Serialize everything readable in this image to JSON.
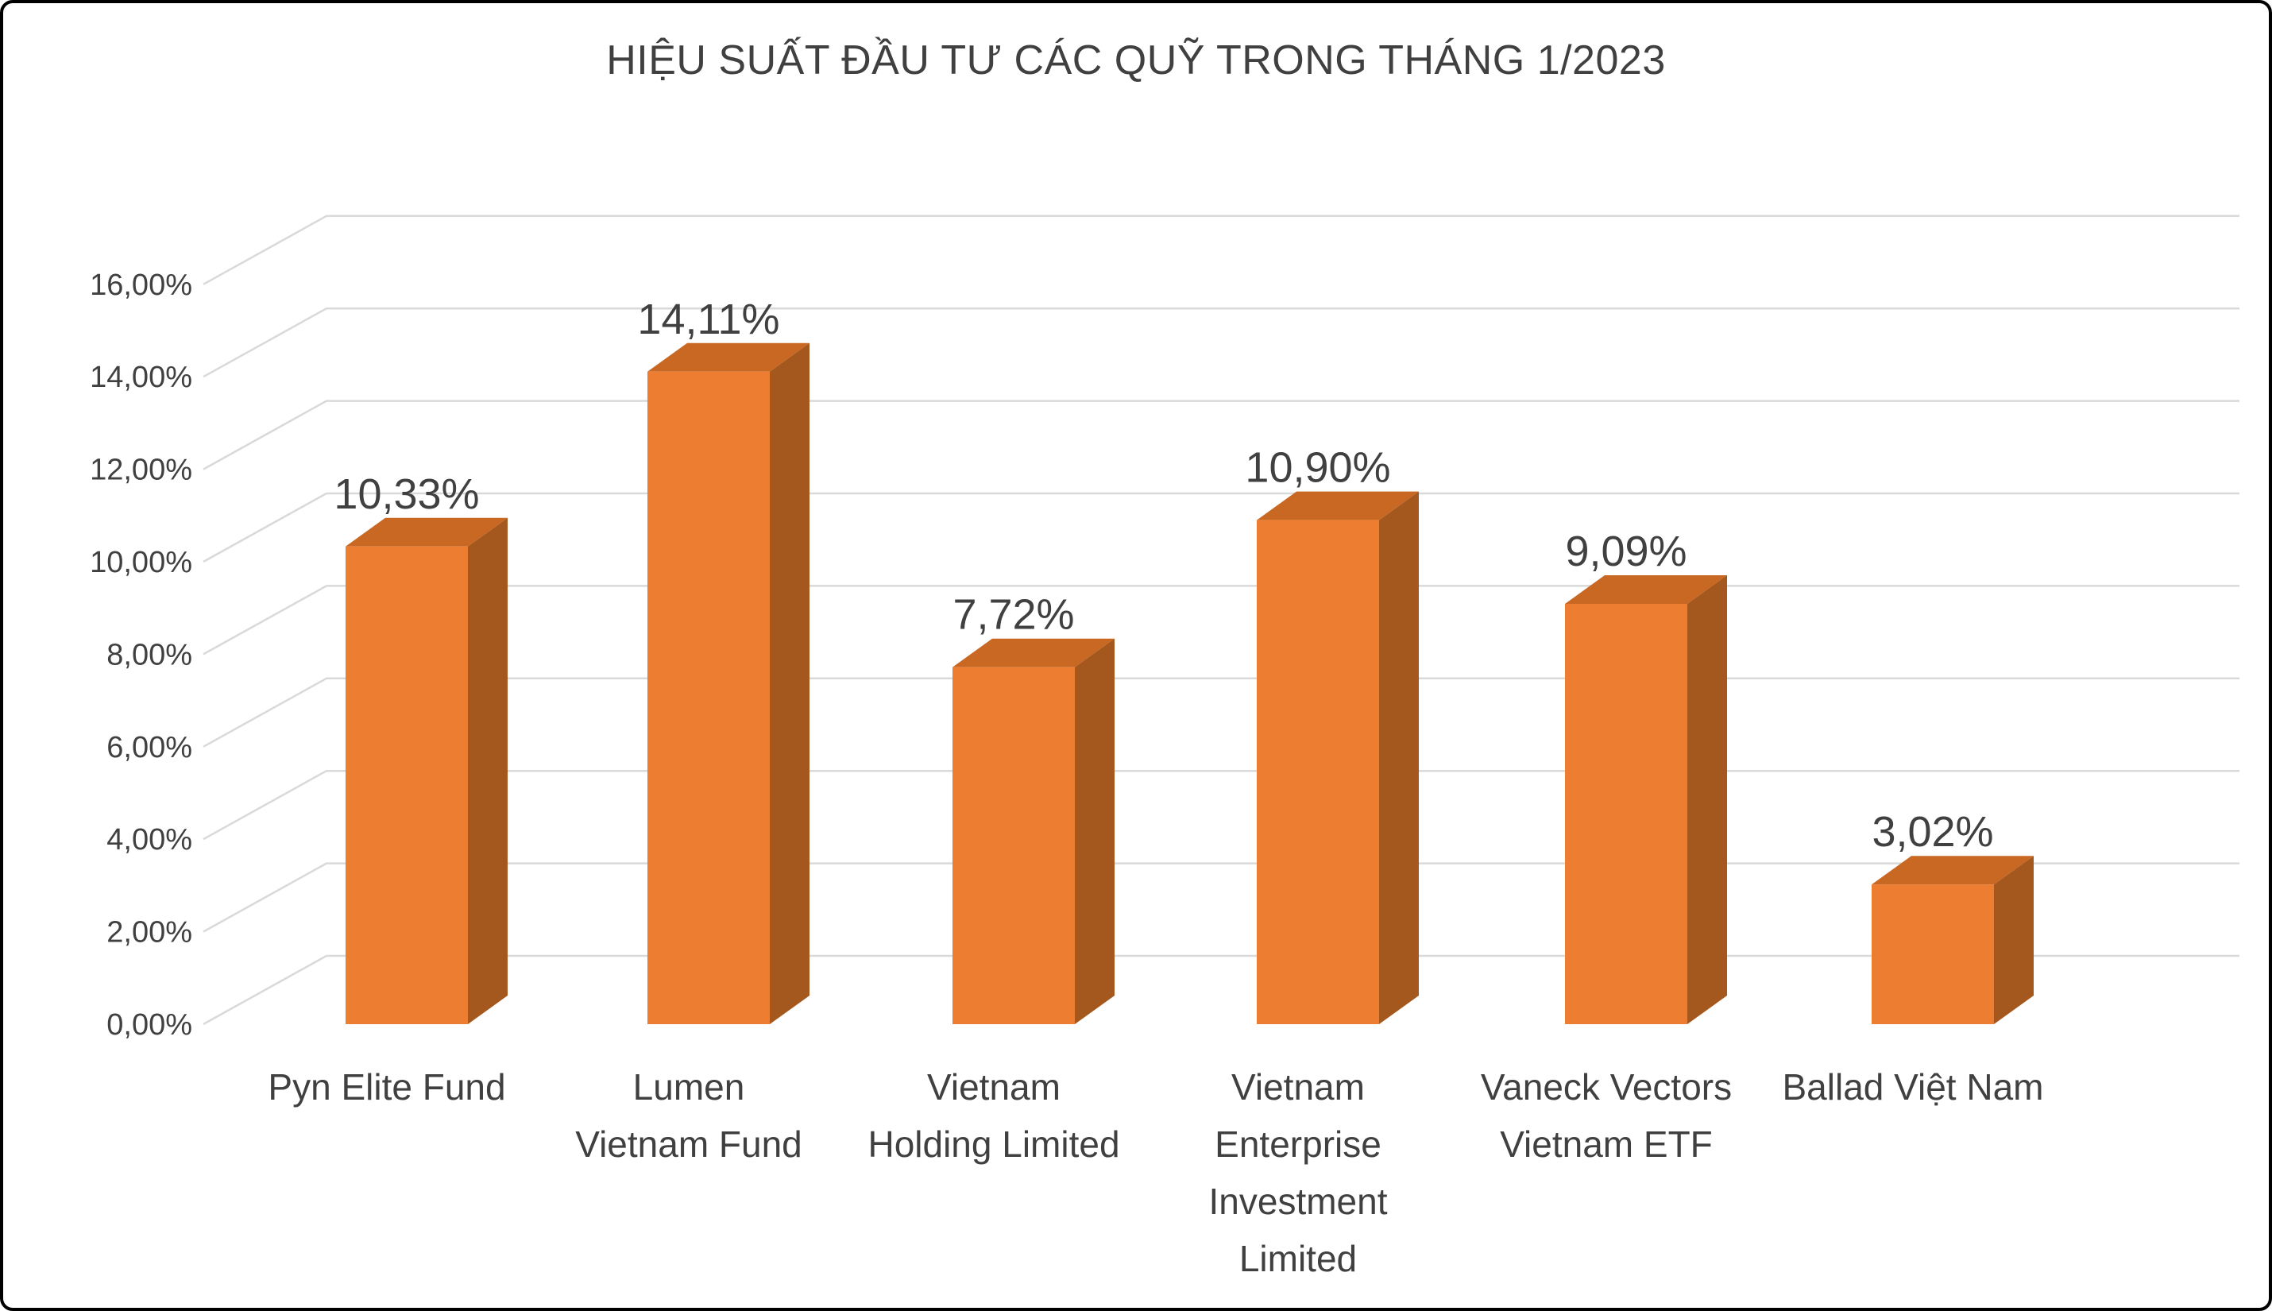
{
  "chart_data": {
    "type": "bar",
    "style": "3d-column",
    "title": "HIỆU SUẤT ĐẦU TƯ CÁC QUỸ TRONG THÁNG 1/2023",
    "categories": [
      "Pyn Elite Fund",
      "Lumen Vietnam Fund",
      "Vietnam Holding Limited",
      "Vietnam Enterprise Investment Limited",
      "Vaneck Vectors Vietnam ETF",
      "Ballad Việt Nam"
    ],
    "category_lines": [
      [
        "Pyn Elite Fund"
      ],
      [
        "Lumen",
        "Vietnam Fund"
      ],
      [
        "Vietnam",
        "Holding Limited"
      ],
      [
        "Vietnam",
        "Enterprise",
        "Investment",
        "Limited"
      ],
      [
        "Vaneck Vectors",
        "Vietnam ETF"
      ],
      [
        "Ballad Việt Nam"
      ]
    ],
    "values": [
      10.33,
      14.11,
      7.72,
      10.9,
      9.09,
      3.02
    ],
    "value_labels": [
      "10,33%",
      "14,11%",
      "7,72%",
      "10,90%",
      "9,09%",
      "3,02%"
    ],
    "xlabel": "",
    "ylabel": "",
    "ylim": [
      0,
      16
    ],
    "yticks": {
      "values": [
        0,
        2,
        4,
        6,
        8,
        10,
        12,
        14,
        16
      ],
      "labels": [
        "0,00%",
        "2,00%",
        "4,00%",
        "6,00%",
        "8,00%",
        "10,00%",
        "12,00%",
        "14,00%",
        "16,00%"
      ]
    },
    "legend": "none",
    "grid": true,
    "colors": {
      "bar_front": "#ED7D31",
      "bar_top": "#C96823",
      "bar_side": "#A4581E",
      "grid": "#D9D9D9",
      "text": "#404040",
      "title": "#404040",
      "background": "#FFFFFF",
      "border": "#000000"
    }
  }
}
